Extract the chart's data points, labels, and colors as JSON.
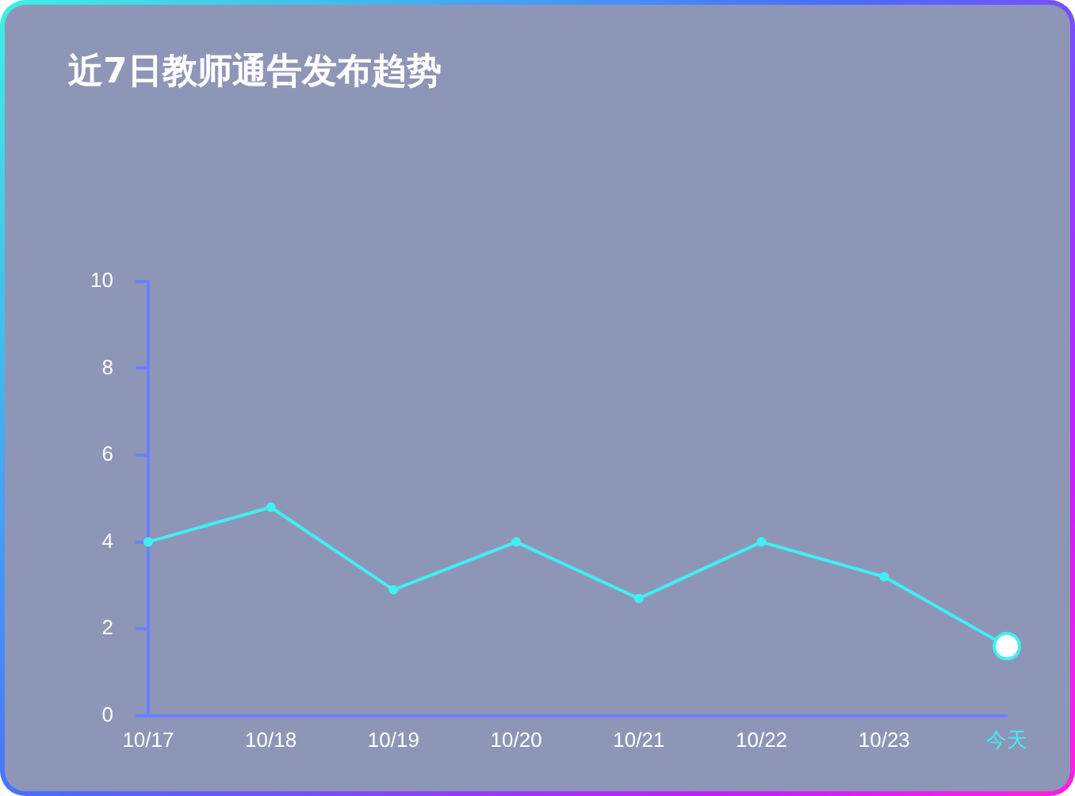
{
  "chart_data": {
    "type": "line",
    "title": "近7日教师通告发布趋势",
    "categories": [
      "10/17",
      "10/18",
      "10/19",
      "10/20",
      "10/21",
      "10/22",
      "10/23",
      "今天"
    ],
    "series": [
      {
        "color": "#3ff0f0",
        "values": [
          4,
          4.8,
          2.9,
          4,
          2.7,
          4,
          3.2,
          1.6
        ]
      }
    ],
    "ylim": [
      0,
      10
    ],
    "yticks": [
      0,
      2,
      4,
      6,
      8,
      10
    ],
    "grid": false,
    "legend": false,
    "marker": "circle",
    "line_style": "solid"
  }
}
